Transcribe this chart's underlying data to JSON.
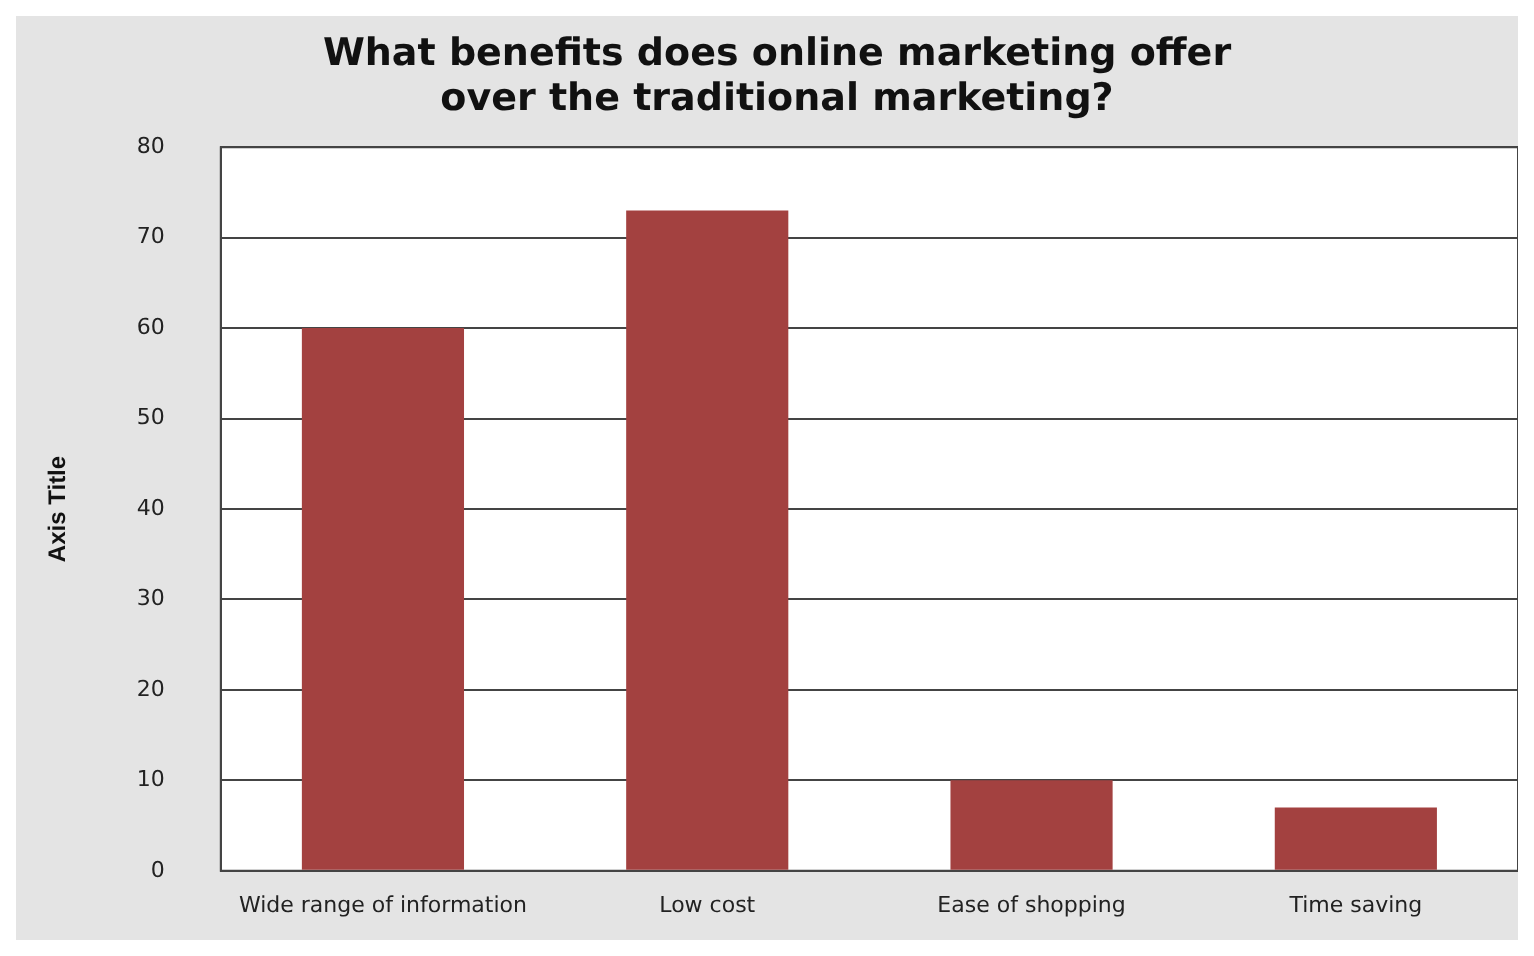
{
  "chart_data": {
    "type": "bar",
    "title": "What benefits does online marketing offer over the traditional marketing?",
    "ylabel": "Axis Title",
    "categories": [
      "Wide range of information",
      "Low cost",
      "Ease of shopping",
      "Time saving"
    ],
    "values": [
      60,
      73,
      10,
      7
    ],
    "color": "#a34140",
    "ylim": [
      0,
      80
    ],
    "yticks": [
      0,
      10,
      20,
      30,
      40,
      50,
      60,
      70,
      80
    ],
    "grid": "y"
  }
}
